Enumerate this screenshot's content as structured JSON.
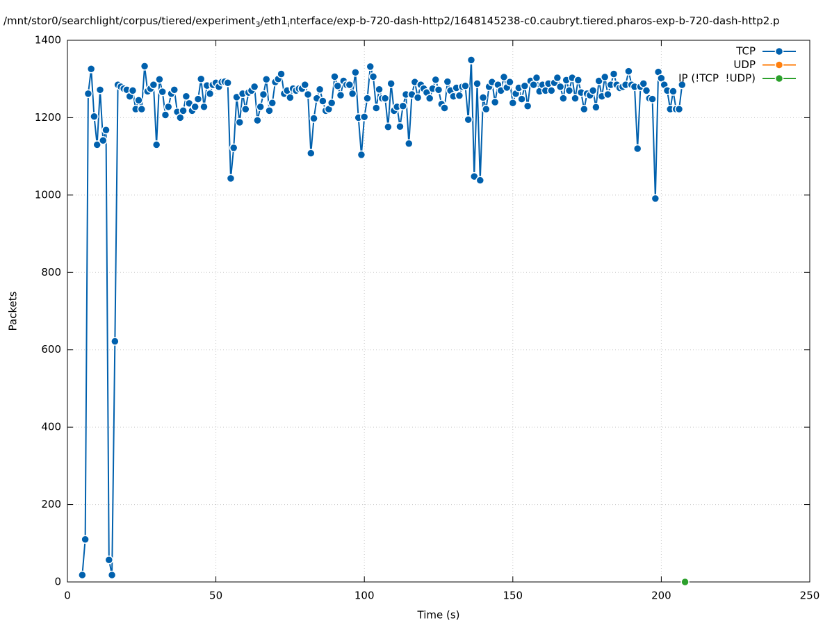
{
  "chart_data": {
    "type": "line",
    "title": [
      "/mnt/stor0/searchlight/corpus/tiered/experiment",
      "3",
      "/eth1",
      "i",
      "nterface/exp-b-720-dash-http2/1648145238-c0.caubryt.tiered.pharos-exp-b-720-dash-http2.p"
    ],
    "xlabel": "Time (s)",
    "ylabel": "Packets",
    "xlim": [
      0,
      250
    ],
    "xticks": [
      0,
      50,
      100,
      150,
      200,
      250
    ],
    "ylim": [
      0,
      1400
    ],
    "yticks": [
      0,
      200,
      400,
      600,
      800,
      1000,
      1200,
      1400
    ],
    "grid": true,
    "legend": "top-right",
    "series": [
      {
        "name": "TCP",
        "color": "#0060ad",
        "x": [
          5,
          6,
          7,
          8,
          9,
          10,
          11,
          12,
          13,
          14,
          15,
          16,
          17,
          18,
          19,
          20,
          21,
          22,
          23,
          24,
          25,
          26,
          27,
          28,
          29,
          30,
          31,
          32,
          33,
          34,
          35,
          36,
          37,
          38,
          39,
          40,
          41,
          42,
          43,
          44,
          45,
          46,
          47,
          48,
          49,
          50,
          51,
          52,
          53,
          54,
          55,
          56,
          57,
          58,
          59,
          60,
          61,
          62,
          63,
          64,
          65,
          66,
          67,
          68,
          69,
          70,
          71,
          72,
          73,
          74,
          75,
          76,
          77,
          78,
          79,
          80,
          81,
          82,
          83,
          84,
          85,
          86,
          87,
          88,
          89,
          90,
          91,
          92,
          93,
          94,
          95,
          96,
          97,
          98,
          99,
          100,
          101,
          102,
          103,
          104,
          105,
          106,
          107,
          108,
          109,
          110,
          111,
          112,
          113,
          114,
          115,
          116,
          117,
          118,
          119,
          120,
          121,
          122,
          123,
          124,
          125,
          126,
          127,
          128,
          129,
          130,
          131,
          132,
          133,
          134,
          135,
          136,
          137,
          138,
          139,
          140,
          141,
          142,
          143,
          144,
          145,
          146,
          147,
          148,
          149,
          150,
          151,
          152,
          153,
          154,
          155,
          156,
          157,
          158,
          159,
          160,
          161,
          162,
          163,
          164,
          165,
          166,
          167,
          168,
          169,
          170,
          171,
          172,
          173,
          174,
          175,
          176,
          177,
          178,
          179,
          180,
          181,
          182,
          183,
          184,
          185,
          186,
          187,
          188,
          189,
          190,
          191,
          192,
          193,
          194,
          195,
          196,
          197,
          198,
          199,
          200,
          201,
          202,
          203,
          204,
          205,
          206,
          207
        ],
        "values": [
          18,
          110,
          1262,
          1326,
          1203,
          1130,
          1272,
          1141,
          1168,
          57,
          18,
          622,
          1285,
          1280,
          1275,
          1272,
          1255,
          1270,
          1222,
          1245,
          1222,
          1333,
          1268,
          1275,
          1285,
          1130,
          1299,
          1267,
          1207,
          1228,
          1262,
          1272,
          1215,
          1200,
          1218,
          1255,
          1237,
          1218,
          1228,
          1248,
          1300,
          1228,
          1283,
          1262,
          1285,
          1290,
          1280,
          1292,
          1293,
          1290,
          1043,
          1122,
          1253,
          1188,
          1262,
          1222,
          1265,
          1270,
          1280,
          1193,
          1228,
          1260,
          1299,
          1218,
          1238,
          1292,
          1300,
          1313,
          1262,
          1270,
          1252,
          1275,
          1270,
          1275,
          1275,
          1285,
          1260,
          1108,
          1198,
          1250,
          1273,
          1243,
          1218,
          1222,
          1238,
          1306,
          1282,
          1258,
          1295,
          1285,
          1285,
          1262,
          1317,
          1200,
          1104,
          1202,
          1250,
          1332,
          1306,
          1225,
          1273,
          1250,
          1250,
          1176,
          1288,
          1218,
          1228,
          1177,
          1230,
          1260,
          1133,
          1260,
          1292,
          1252,
          1285,
          1275,
          1265,
          1250,
          1275,
          1298,
          1272,
          1235,
          1225,
          1293,
          1270,
          1255,
          1277,
          1257,
          1280,
          1282,
          1195,
          1349,
          1048,
          1288,
          1038,
          1252,
          1222,
          1280,
          1292,
          1240,
          1285,
          1270,
          1305,
          1278,
          1292,
          1238,
          1262,
          1277,
          1248,
          1282,
          1230,
          1295,
          1285,
          1303,
          1268,
          1285,
          1270,
          1288,
          1270,
          1290,
          1303,
          1280,
          1250,
          1297,
          1270,
          1303,
          1250,
          1297,
          1265,
          1222,
          1262,
          1258,
          1270,
          1227,
          1295,
          1255,
          1305,
          1260,
          1285,
          1313,
          1285,
          1277,
          1280,
          1285,
          1320,
          1285,
          1280,
          1120,
          1280,
          1288,
          1270,
          1250,
          1248,
          991,
          1318,
          1302,
          1285,
          1270,
          1222,
          1268,
          1222,
          1222,
          1285
        ]
      },
      {
        "name": "UDP",
        "color": "#ff7f0e",
        "x": [],
        "values": []
      },
      {
        "name": "IP (!TCP  !UDP)",
        "color": "#2ca02c",
        "x": [
          208
        ],
        "values": [
          0
        ]
      }
    ]
  }
}
